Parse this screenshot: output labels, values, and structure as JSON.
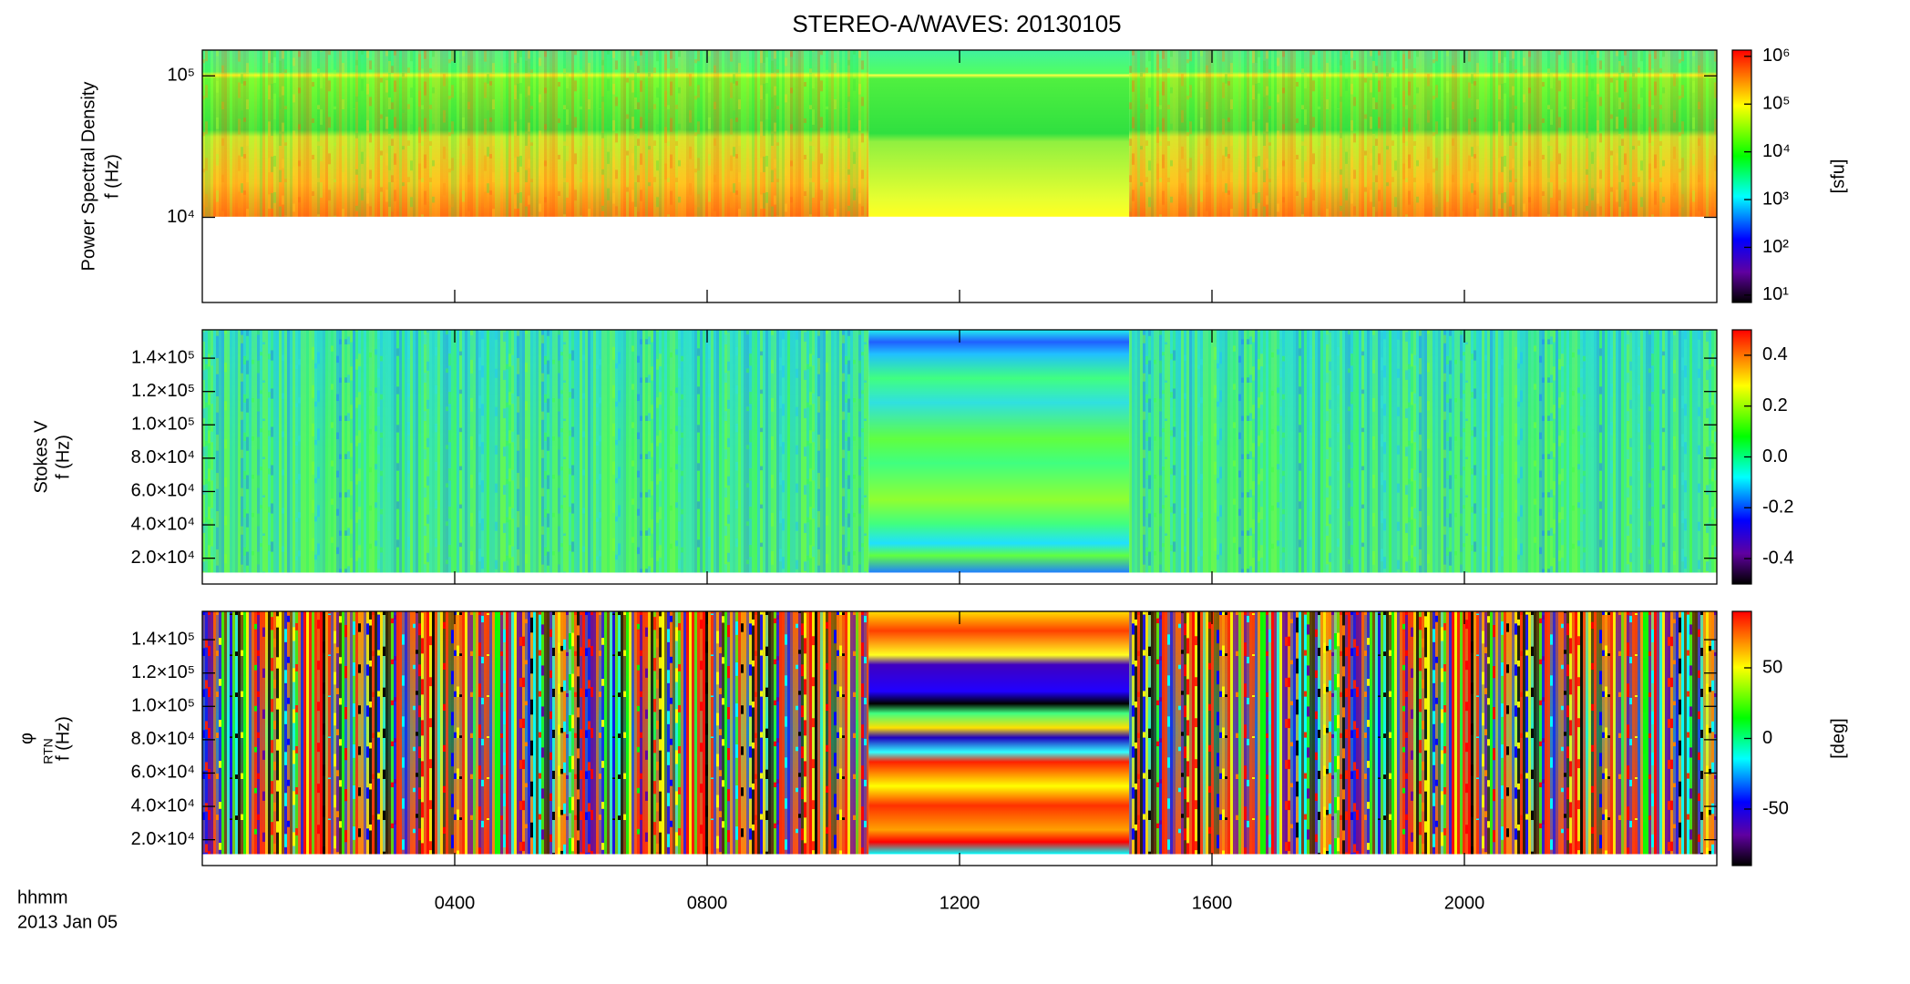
{
  "title": "STEREO-A/WAVES: 20130105",
  "x_label": "hhmm",
  "date_label": "2013 Jan 05",
  "chart_data": [
    {
      "type": "spectrogram",
      "ylabel": "Power Spectral Density",
      "ylabel_unit": "f (Hz)",
      "yscale": "log",
      "ylim": [
        2500,
        152000
      ],
      "yticks": [
        {
          "value": 10000,
          "label": "10⁴"
        },
        {
          "value": 100000,
          "label": "10⁵"
        }
      ],
      "xlim": [
        0,
        1440
      ],
      "xticks": [
        {
          "value": 240,
          "label": "0400"
        },
        {
          "value": 480,
          "label": "0800"
        },
        {
          "value": 720,
          "label": "1200"
        },
        {
          "value": 960,
          "label": "1600"
        },
        {
          "value": 1200,
          "label": "2000"
        }
      ],
      "colorbar": {
        "label": "[sfu]",
        "scale": "log",
        "lim": [
          7,
          1350000
        ],
        "ticks": [
          {
            "value": 10,
            "label": "10¹"
          },
          {
            "value": 100,
            "label": "10²"
          },
          {
            "value": 1000,
            "label": "10³"
          },
          {
            "value": 10000,
            "label": "10⁴"
          },
          {
            "value": 100000,
            "label": "10⁵"
          },
          {
            "value": 1000000,
            "label": "10⁶"
          }
        ]
      }
    },
    {
      "type": "spectrogram",
      "ylabel": "Stokes V",
      "ylabel_unit": "f (Hz)",
      "yscale": "linear",
      "ylim": [
        4500,
        157000
      ],
      "yticks": [
        {
          "value": 20000,
          "label": "2.0×10⁴"
        },
        {
          "value": 40000,
          "label": "4.0×10⁴"
        },
        {
          "value": 60000,
          "label": "6.0×10⁴"
        },
        {
          "value": 80000,
          "label": "8.0×10⁴"
        },
        {
          "value": 100000,
          "label": "1.0×10⁵"
        },
        {
          "value": 120000,
          "label": "1.2×10⁵"
        },
        {
          "value": 140000,
          "label": "1.4×10⁵"
        }
      ],
      "xlim": [
        0,
        1440
      ],
      "xticks": [
        {
          "value": 240,
          "label": "0400"
        },
        {
          "value": 480,
          "label": "0800"
        },
        {
          "value": 720,
          "label": "1200"
        },
        {
          "value": 960,
          "label": "1600"
        },
        {
          "value": 1200,
          "label": "2000"
        }
      ],
      "colorbar": {
        "label": "",
        "scale": "linear",
        "lim": [
          -0.5,
          0.5
        ],
        "ticks": [
          -0.4,
          -0.2,
          {
            "value": 0,
            "label": "0.0"
          },
          0.2,
          0.4
        ]
      }
    },
    {
      "type": "spectrogram",
      "ylabel": "φ",
      "ylabel_sub": "RTN",
      "ylabel_unit": "f (Hz)",
      "yscale": "linear",
      "ylim": [
        4500,
        157000
      ],
      "yticks": [
        {
          "value": 20000,
          "label": "2.0×10⁴"
        },
        {
          "value": 40000,
          "label": "4.0×10⁴"
        },
        {
          "value": 60000,
          "label": "6.0×10⁴"
        },
        {
          "value": 80000,
          "label": "8.0×10⁴"
        },
        {
          "value": 100000,
          "label": "1.0×10⁵"
        },
        {
          "value": 120000,
          "label": "1.2×10⁵"
        },
        {
          "value": 140000,
          "label": "1.4×10⁵"
        }
      ],
      "xlim": [
        0,
        1440
      ],
      "xticks": [
        {
          "value": 240,
          "label": "0400"
        },
        {
          "value": 480,
          "label": "0800"
        },
        {
          "value": 720,
          "label": "1200"
        },
        {
          "value": 960,
          "label": "1600"
        },
        {
          "value": 1200,
          "label": "2000"
        }
      ],
      "colorbar": {
        "label": "[deg]",
        "scale": "linear",
        "lim": [
          -90,
          90
        ],
        "ticks": [
          -50,
          0,
          50
        ]
      }
    }
  ]
}
